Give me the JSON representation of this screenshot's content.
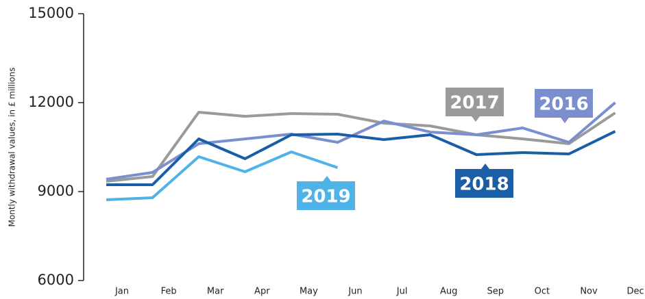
{
  "chart_data": {
    "type": "line",
    "y_label": "Montly withdrawal values, in £ millions",
    "categories": [
      "Jan",
      "Feb",
      "Mar",
      "Apr",
      "May",
      "Jun",
      "Jul",
      "Aug",
      "Sep",
      "Oct",
      "Nov",
      "Dec"
    ],
    "series": [
      {
        "name": "2017",
        "color": "#9a9a9a",
        "values": [
          9346,
          9508,
          11677,
          11538,
          11631,
          11608,
          11308,
          11215,
          10915,
          10777,
          10615,
          11654
        ]
      },
      {
        "name": "2016",
        "color": "#7b8fcf",
        "values": [
          9415,
          9646,
          10615,
          10777,
          10938,
          10661,
          11377,
          11008,
          10915,
          11146,
          10661,
          12000
        ]
      },
      {
        "name": "2018",
        "color": "#1a5ea8",
        "values": [
          9231,
          9231,
          10777,
          10108,
          10915,
          10938,
          10754,
          10915,
          10246,
          10315,
          10269,
          11031
        ]
      },
      {
        "name": "2019",
        "color": "#4fb3e8",
        "values": [
          8723,
          8792,
          10177,
          9669,
          10338,
          9808,
          null,
          null,
          null,
          null,
          null,
          null
        ]
      }
    ],
    "ylim": [
      6000,
      15000
    ],
    "yticks": [
      6000,
      9000,
      12000,
      15000
    ]
  }
}
